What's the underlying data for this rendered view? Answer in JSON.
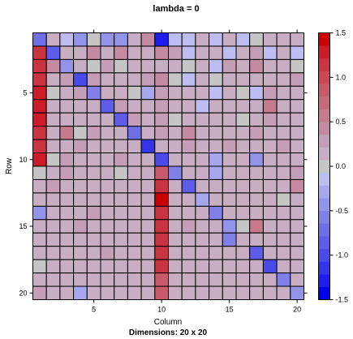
{
  "chart_data": {
    "type": "heatmap",
    "title": "lambda =  0",
    "xlabel": "Column",
    "ylabel": "Row",
    "subtitle": "Dimensions: 20 x 20",
    "rows": 20,
    "cols": 20,
    "x_ticks": [
      "5",
      "10",
      "15",
      "20"
    ],
    "y_ticks": [
      "5",
      "10",
      "15",
      "20"
    ],
    "colorbar": {
      "range": [
        -1.5,
        1.5
      ],
      "ticks": [
        "1.5",
        "1.0",
        "0.5",
        "0.0",
        "-0.5",
        "-1.0",
        "-1.5"
      ],
      "colors": [
        "#0000ee",
        "#1d1def",
        "#3434ed",
        "#4a4aeb",
        "#5d5dea",
        "#6e6ee6",
        "#8080e8",
        "#9393ea",
        "#a7a7ee",
        "#bdbdf2",
        "#c5c5c5",
        "#c8aec3",
        "#c49eb6",
        "#c38aa2",
        "#c57a8f",
        "#c76a7c",
        "#c85a69",
        "#c94854",
        "#ca3340",
        "#cc1c27",
        "#cc0000"
      ]
    },
    "values": [
      [
        -0.7,
        0.1,
        -0.1,
        -0.5,
        0.0,
        -0.5,
        -0.5,
        0.2,
        0.4,
        -1.3,
        -0.1,
        -0.1,
        0.1,
        -0.1,
        0.1,
        -0.1,
        0.0,
        0.1,
        0.2,
        0.1
      ],
      [
        1.2,
        -0.8,
        0.2,
        0.1,
        0.4,
        0.1,
        0.4,
        0.1,
        0.2,
        0.4,
        0.3,
        -0.2,
        0.1,
        0.2,
        -0.1,
        0.2,
        0.3,
        -0.1,
        0.1,
        -0.1
      ],
      [
        1.2,
        0.4,
        -0.4,
        0.1,
        0.0,
        0.3,
        0.0,
        0.1,
        0.2,
        0.1,
        0.2,
        0.0,
        0.2,
        -0.1,
        0.3,
        0.2,
        0.4,
        0.1,
        0.2,
        0.0
      ],
      [
        1.2,
        0.1,
        0.3,
        -1.0,
        0.3,
        0.1,
        0.2,
        0.1,
        0.3,
        0.4,
        0.0,
        -0.1,
        0.1,
        0.0,
        0.1,
        0.2,
        0.1,
        0.2,
        0.1,
        0.3
      ],
      [
        1.3,
        0.0,
        0.2,
        0.3,
        -0.6,
        0.1,
        0.2,
        0.0,
        -0.3,
        0.3,
        0.1,
        0.2,
        0.1,
        -0.2,
        0.1,
        0.0,
        -0.1,
        0.3,
        0.1,
        0.2
      ],
      [
        1.3,
        0.2,
        0.1,
        0.1,
        0.2,
        -0.8,
        0.3,
        0.1,
        0.2,
        0.3,
        0.1,
        0.1,
        -0.1,
        0.1,
        0.2,
        0.1,
        0.2,
        0.5,
        0.1,
        0.2
      ],
      [
        1.3,
        0.1,
        0.2,
        0.2,
        0.1,
        0.2,
        -0.9,
        0.3,
        0.1,
        0.3,
        0.0,
        0.2,
        0.1,
        0.1,
        0.2,
        0.0,
        0.2,
        0.3,
        0.1,
        0.2
      ],
      [
        1.2,
        0.1,
        0.5,
        0.0,
        0.3,
        0.1,
        0.2,
        -0.7,
        0.1,
        0.3,
        0.2,
        0.4,
        0.1,
        0.1,
        0.2,
        0.1,
        0.3,
        0.2,
        0.1,
        0.1
      ],
      [
        1.2,
        0.2,
        0.1,
        0.3,
        0.1,
        0.2,
        0.1,
        0.1,
        -1.2,
        0.2,
        0.1,
        0.3,
        0.2,
        0.1,
        0.3,
        0.1,
        0.1,
        0.2,
        0.3,
        0.1
      ],
      [
        1.3,
        0.0,
        0.3,
        0.1,
        0.2,
        0.1,
        0.3,
        0.2,
        0.1,
        -1.0,
        0.1,
        0.2,
        0.1,
        -0.3,
        0.1,
        0.1,
        -0.4,
        0.1,
        0.2,
        0.1
      ],
      [
        0.0,
        0.1,
        0.3,
        0.2,
        0.1,
        0.2,
        0.0,
        0.1,
        0.2,
        0.9,
        -0.6,
        0.1,
        0.2,
        -0.3,
        0.1,
        0.2,
        0.1,
        0.1,
        0.2,
        0.3
      ],
      [
        0.1,
        0.3,
        0.2,
        0.1,
        0.2,
        0.1,
        0.2,
        0.1,
        0.1,
        1.1,
        0.2,
        -0.8,
        0.1,
        0.2,
        0.1,
        0.1,
        0.2,
        0.2,
        0.1,
        0.4
      ],
      [
        0.1,
        0.2,
        0.1,
        0.2,
        0.1,
        0.1,
        0.2,
        0.1,
        0.2,
        1.4,
        0.1,
        0.2,
        -0.3,
        0.1,
        0.1,
        0.2,
        0.1,
        0.1,
        0.0,
        0.1
      ],
      [
        -0.4,
        0.1,
        0.2,
        0.1,
        0.3,
        0.2,
        0.1,
        0.2,
        0.1,
        1.2,
        0.2,
        0.1,
        0.1,
        -0.6,
        0.2,
        0.1,
        0.2,
        0.2,
        0.1,
        0.2
      ],
      [
        0.2,
        0.1,
        0.1,
        0.3,
        0.1,
        0.2,
        0.1,
        0.1,
        0.2,
        1.1,
        0.1,
        0.3,
        0.1,
        0.2,
        -0.5,
        0.0,
        0.6,
        0.1,
        0.2,
        0.1
      ],
      [
        0.1,
        0.2,
        0.1,
        0.1,
        0.2,
        0.1,
        0.2,
        0.1,
        0.1,
        1.1,
        0.1,
        0.2,
        0.1,
        0.1,
        -0.6,
        0.1,
        0.2,
        0.1,
        0.2,
        0.1
      ],
      [
        0.1,
        0.1,
        0.2,
        0.1,
        0.1,
        0.3,
        0.1,
        0.2,
        0.1,
        1.2,
        0.2,
        0.1,
        0.1,
        0.2,
        0.1,
        0.1,
        -0.8,
        0.1,
        0.1,
        0.2
      ],
      [
        0.0,
        0.2,
        0.1,
        0.2,
        0.1,
        0.1,
        0.2,
        0.1,
        0.2,
        1.1,
        0.1,
        0.1,
        0.2,
        0.1,
        0.2,
        0.1,
        0.1,
        -1.0,
        0.1,
        0.1
      ],
      [
        0.2,
        0.1,
        0.1,
        0.1,
        0.2,
        0.1,
        0.1,
        0.2,
        0.1,
        0.9,
        0.1,
        0.2,
        0.1,
        0.2,
        0.1,
        0.2,
        0.1,
        0.1,
        -0.6,
        0.1
      ],
      [
        0.3,
        0.1,
        0.2,
        -0.3,
        0.1,
        0.2,
        0.1,
        0.1,
        0.2,
        0.8,
        0.1,
        0.1,
        0.2,
        0.1,
        0.1,
        0.2,
        0.1,
        0.2,
        0.1,
        -0.4
      ]
    ]
  }
}
